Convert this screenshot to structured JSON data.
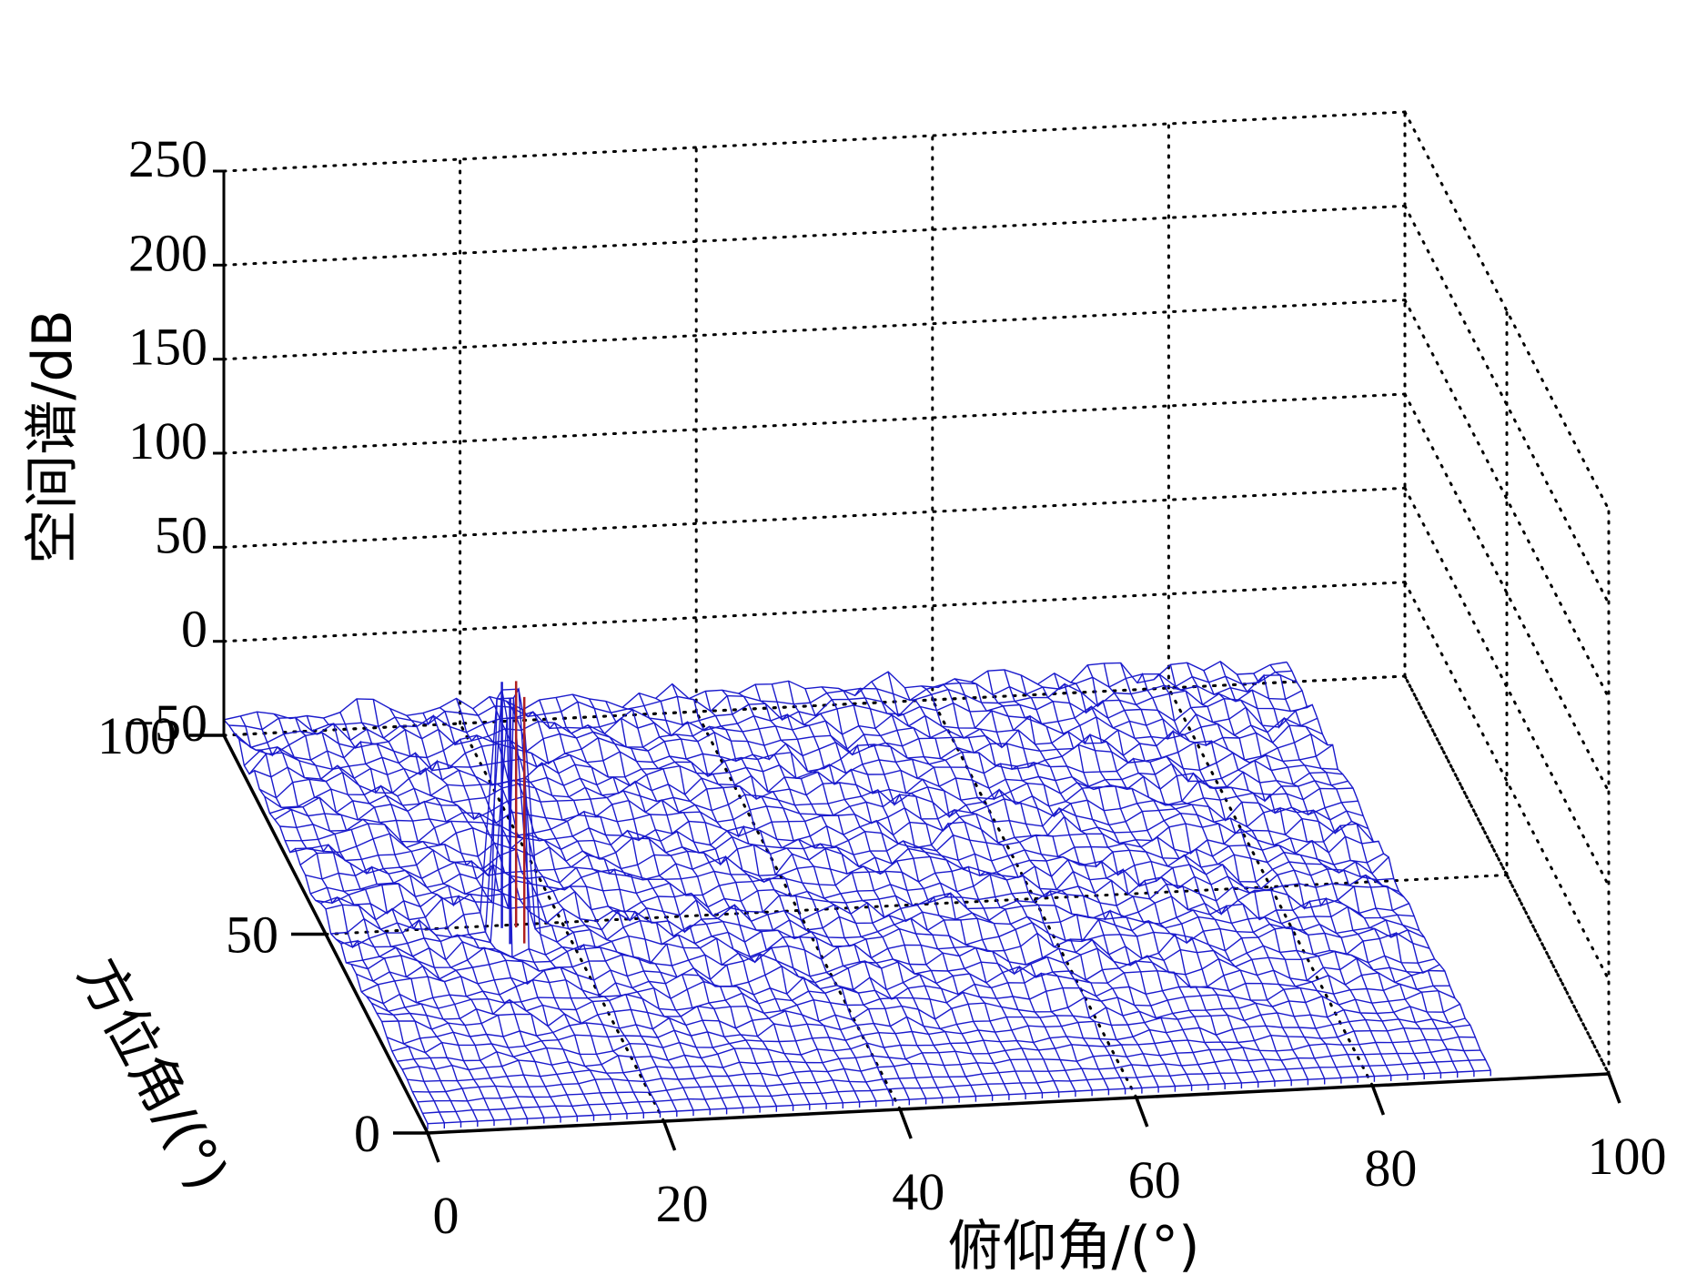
{
  "chart_data": {
    "type": "3d-mesh",
    "xlabel": "俯仰角/(°)",
    "ylabel": "方位角/(°)",
    "zlabel": "空间谱/dB",
    "xlim": [
      0,
      100
    ],
    "ylim": [
      0,
      100
    ],
    "zlim": [
      -50,
      250
    ],
    "x_ticks": [
      {
        "value": 0,
        "label": "0"
      },
      {
        "value": 20,
        "label": "20"
      },
      {
        "value": 40,
        "label": "40"
      },
      {
        "value": 60,
        "label": "60"
      },
      {
        "value": 80,
        "label": "80"
      },
      {
        "value": 100,
        "label": "100"
      }
    ],
    "y_ticks": [
      {
        "value": 0,
        "label": "0"
      },
      {
        "value": 50,
        "label": "50"
      },
      {
        "value": 100,
        "label": "100"
      }
    ],
    "z_ticks": [
      {
        "value": -50,
        "label": "−50"
      },
      {
        "value": 0,
        "label": "0"
      },
      {
        "value": 50,
        "label": "50"
      },
      {
        "value": 100,
        "label": "100"
      },
      {
        "value": 150,
        "label": "150"
      },
      {
        "value": 200,
        "label": "200"
      },
      {
        "value": 250,
        "label": "250"
      }
    ],
    "grid": true,
    "mesh_color": "#1a1acc",
    "peak_edge_color": "#b02020",
    "surface": {
      "x_range": [
        0,
        90
      ],
      "y_range": [
        0,
        100
      ],
      "baseline_db": -45,
      "peak": {
        "elevation": 15,
        "azimuth": 45,
        "value_db": 86
      }
    }
  }
}
